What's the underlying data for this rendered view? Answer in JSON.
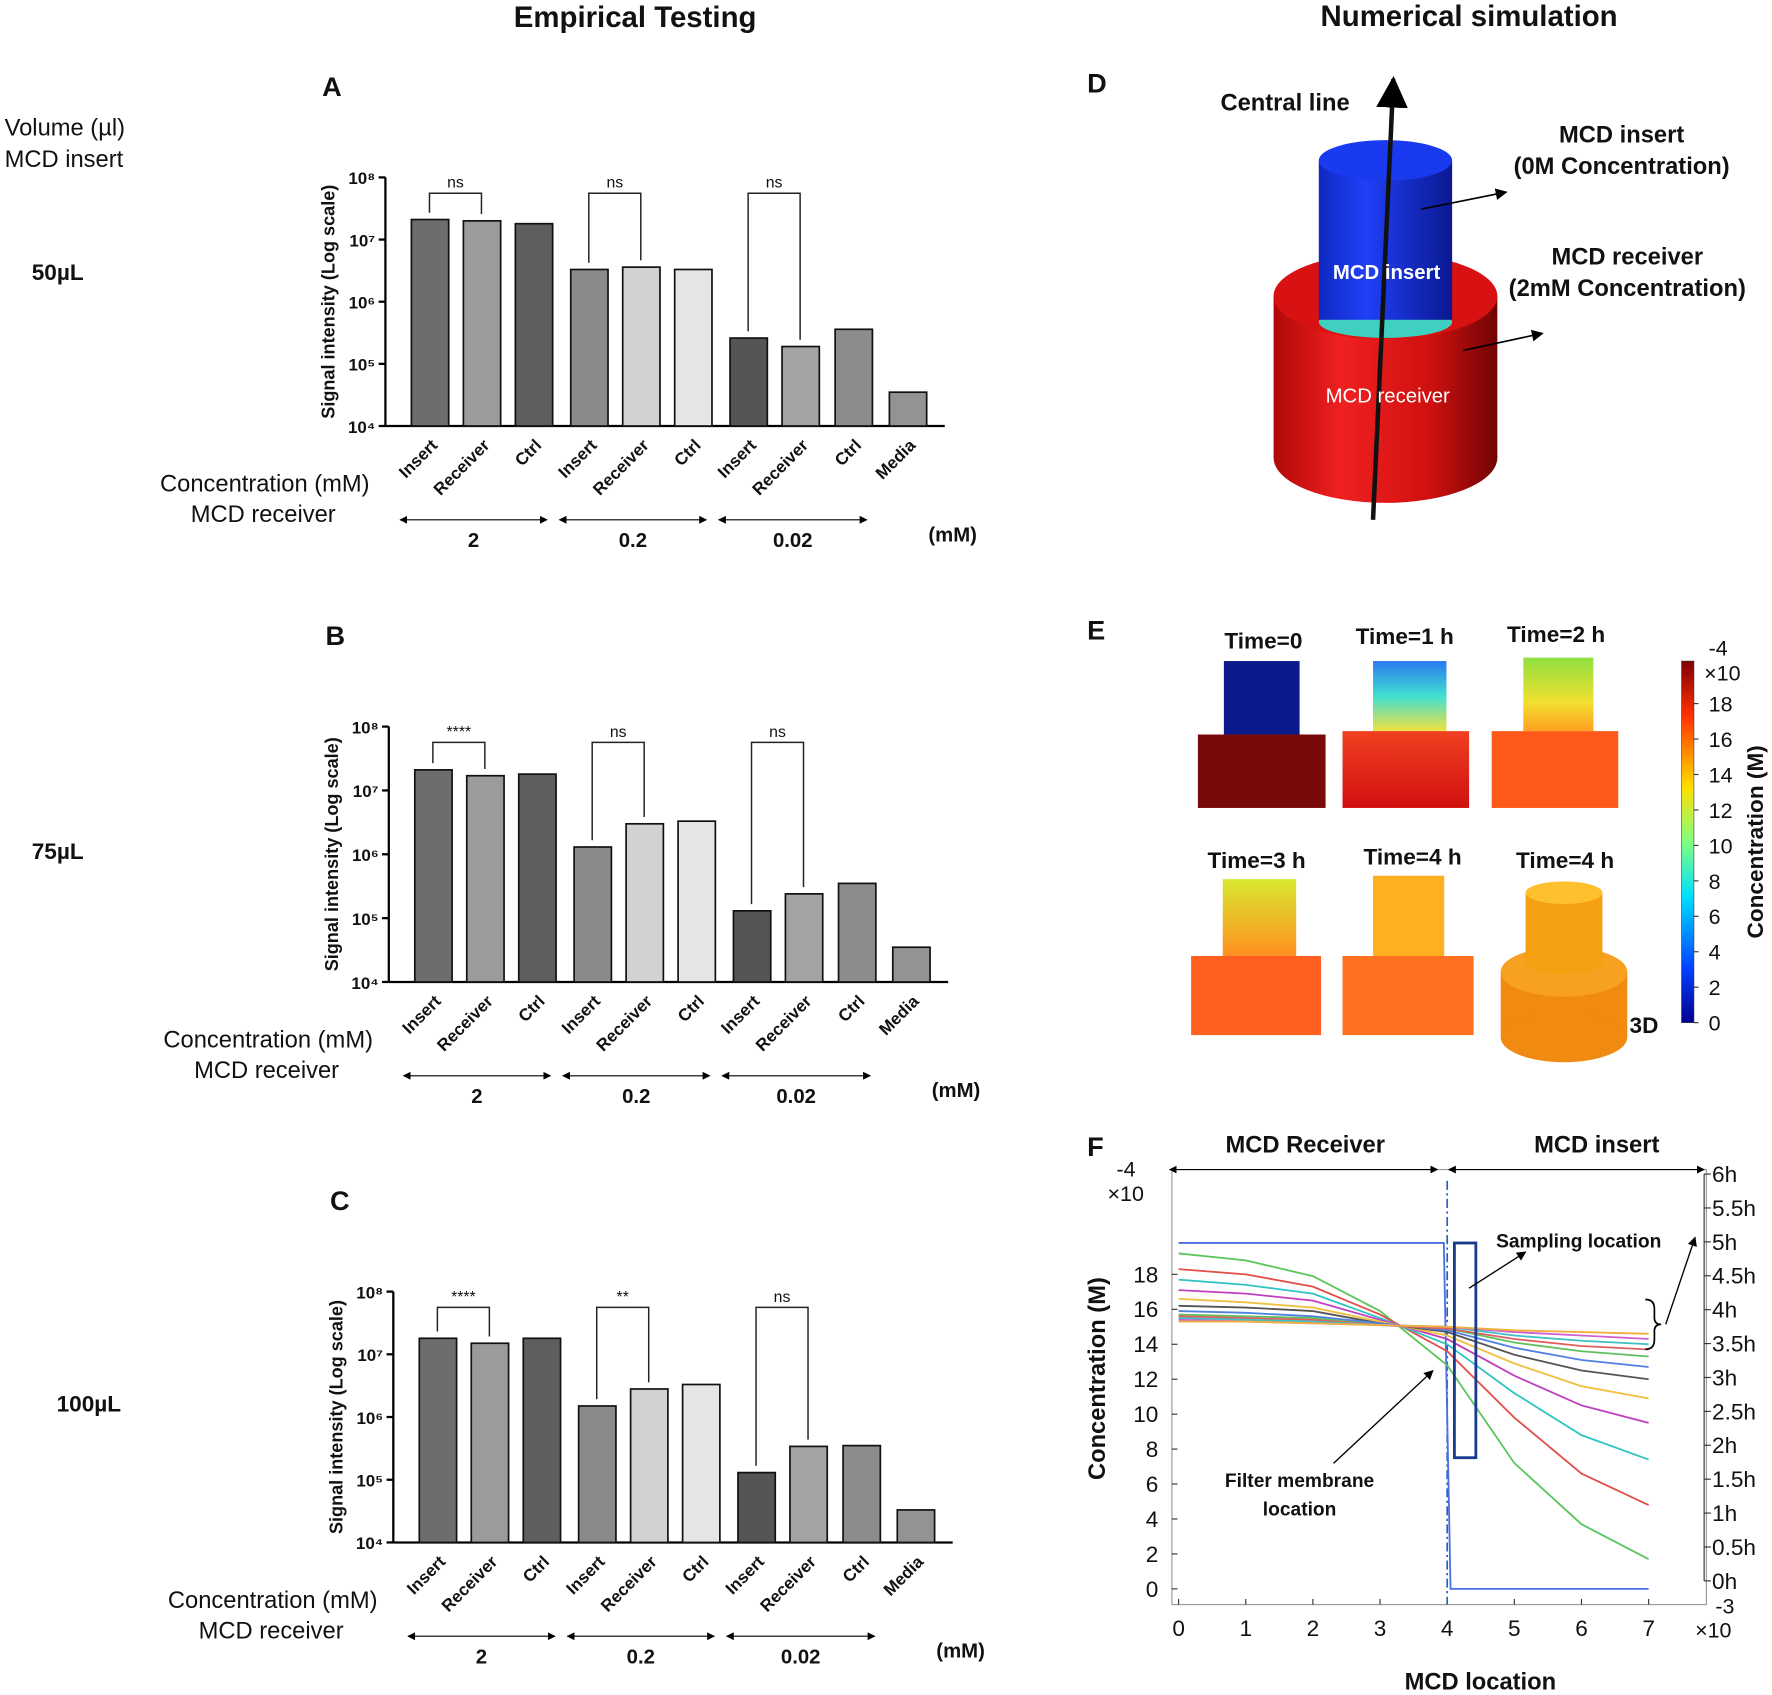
{
  "headers": [
    "Empirical Testing",
    "Numerical simulation"
  ],
  "side_labels": {
    "volume": [
      "Volume (µl)",
      "MCD insert"
    ],
    "rows": [
      "50µL",
      "75µL",
      "100µL"
    ]
  },
  "panel_d": {
    "title": "D",
    "axis": "Central line",
    "insert_callout": [
      "MCD insert",
      "(0M Concentration)"
    ],
    "receiver_callout": [
      "MCD receiver",
      "(2mM Concentration)"
    ],
    "insert_label": "MCD insert",
    "receiver_label": "MCD receiver"
  },
  "panel_e": {
    "title": "E",
    "times": [
      "Time=0",
      "Time=1 h",
      "Time=2 h",
      "Time=3 h",
      "Time=4 h",
      "Time=4 h"
    ],
    "view_3d": "3D",
    "colorbar": {
      "label": "Concentration (M)",
      "exponent": [
        "×10",
        "-4"
      ],
      "ylim": [
        0,
        20.4
      ],
      "ticks": [
        0,
        2,
        4,
        6,
        8,
        10,
        12,
        14,
        16,
        18
      ]
    }
  },
  "chart_data": [
    {
      "type": "bar",
      "title": "A",
      "ylabel": "Signal intensity (Log scale)",
      "xlabel": [
        "Concentration (mM)",
        "MCD receiver"
      ],
      "categories": [
        "Insert",
        "Receiver",
        "Ctrl",
        "Insert",
        "Receiver",
        "Ctrl",
        "Insert",
        "Receiver",
        "Ctrl",
        "Media"
      ],
      "values": [
        21000000,
        20000000,
        18000000,
        3300000,
        3600000,
        3300000,
        260000,
        190000,
        360000,
        35000
      ],
      "colors": [
        "#6d6d6d",
        "#9b9b9b",
        "#5e5e5e",
        "#8a8a8a",
        "#d2d2d2",
        "#e6e6e6",
        "#555555",
        "#a3a3a3",
        "#8c8c8c",
        "#939393"
      ],
      "log_scale": true,
      "ylim": [
        10000,
        100000000
      ],
      "yticks": [
        {
          "value": 10000,
          "label": "10⁴"
        },
        {
          "value": 100000,
          "label": "10⁵"
        },
        {
          "value": 1000000,
          "label": "10⁶"
        },
        {
          "value": 10000000,
          "label": "10⁷"
        },
        {
          "value": 100000000,
          "label": "10⁸"
        }
      ],
      "significance": [
        "ns",
        "ns",
        "ns"
      ],
      "groups": [
        "2",
        "0.2",
        "0.02"
      ],
      "group_unit": "(mM)"
    },
    {
      "type": "bar",
      "title": "B",
      "ylabel": "Signal intensity (Log scale)",
      "xlabel": [
        "Concentration (mM)",
        "MCD receiver"
      ],
      "categories": [
        "Insert",
        "Receiver",
        "Ctrl",
        "Insert",
        "Receiver",
        "Ctrl",
        "Insert",
        "Receiver",
        "Ctrl",
        "Media"
      ],
      "values": [
        21000000,
        17000000,
        18000000,
        1300000,
        3000000,
        3300000,
        130000,
        240000,
        350000,
        35000
      ],
      "colors": [
        "#6d6d6d",
        "#9b9b9b",
        "#5e5e5e",
        "#8a8a8a",
        "#d2d2d2",
        "#e6e6e6",
        "#555555",
        "#a3a3a3",
        "#8c8c8c",
        "#939393"
      ],
      "log_scale": true,
      "ylim": [
        10000,
        100000000
      ],
      "yticks": [
        {
          "value": 10000,
          "label": "10⁴"
        },
        {
          "value": 100000,
          "label": "10⁵"
        },
        {
          "value": 1000000,
          "label": "10⁶"
        },
        {
          "value": 10000000,
          "label": "10⁷"
        },
        {
          "value": 100000000,
          "label": "10⁸"
        }
      ],
      "significance": [
        "****",
        "ns",
        "ns"
      ],
      "groups": [
        "2",
        "0.2",
        "0.02"
      ],
      "group_unit": "(mM)"
    },
    {
      "type": "bar",
      "title": "C",
      "ylabel": "Signal intensity (Log scale)",
      "xlabel": [
        "Concentration (mM)",
        "MCD receiver"
      ],
      "categories": [
        "Insert",
        "Receiver",
        "Ctrl",
        "Insert",
        "Receiver",
        "Ctrl",
        "Insert",
        "Receiver",
        "Ctrl",
        "Media"
      ],
      "values": [
        18000000,
        15000000,
        18000000,
        1500000,
        2800000,
        3300000,
        130000,
        340000,
        350000,
        33000
      ],
      "colors": [
        "#6d6d6d",
        "#9b9b9b",
        "#5e5e5e",
        "#8a8a8a",
        "#d2d2d2",
        "#e6e6e6",
        "#555555",
        "#a3a3a3",
        "#8c8c8c",
        "#939393"
      ],
      "log_scale": true,
      "ylim": [
        10000,
        100000000
      ],
      "yticks": [
        {
          "value": 10000,
          "label": "10⁴"
        },
        {
          "value": 100000,
          "label": "10⁵"
        },
        {
          "value": 1000000,
          "label": "10⁶"
        },
        {
          "value": 10000000,
          "label": "10⁷"
        },
        {
          "value": 100000000,
          "label": "10⁸"
        }
      ],
      "significance": [
        "****",
        "**",
        "ns"
      ],
      "groups": [
        "2",
        "0.2",
        "0.02"
      ],
      "group_unit": "(mM)"
    },
    {
      "type": "line",
      "title": "F",
      "ylabel": "Concentration (M)",
      "xlabel": "MCD location",
      "regions": [
        "MCD Receiver",
        "MCD insert"
      ],
      "sampling": "Sampling location",
      "membrane": [
        "Filter membrane",
        "location"
      ],
      "y_exponent": [
        "×10",
        "-4"
      ],
      "x_exponent": [
        "×10",
        "-3"
      ],
      "xlim": [
        -0.1,
        7.86
      ],
      "ylim": [
        -0.9,
        24
      ],
      "xticks": [
        0,
        1,
        2,
        3,
        4,
        5,
        6,
        7
      ],
      "yticks": [
        0,
        2,
        4,
        6,
        8,
        10,
        12,
        14,
        16,
        18
      ],
      "x": [
        0,
        1,
        2,
        3,
        4,
        5,
        6,
        7
      ],
      "series": [
        {
          "name": "0h",
          "color": "#4a6fe0",
          "x": [
            0,
            3.95,
            4.05,
            7
          ],
          "values": [
            19.8,
            19.8,
            0,
            0
          ]
        },
        {
          "name": "0.5h",
          "color": "#5cc55c",
          "values": [
            19.2,
            18.8,
            17.9,
            15.9,
            12.8,
            7.2,
            3.7,
            1.7
          ]
        },
        {
          "name": "1h",
          "color": "#e0504a",
          "values": [
            18.3,
            18.0,
            17.3,
            15.7,
            13.6,
            9.8,
            6.6,
            4.8
          ]
        },
        {
          "name": "1.5h",
          "color": "#2ec4c4",
          "values": [
            17.7,
            17.4,
            16.9,
            15.5,
            14.0,
            11.2,
            8.8,
            7.4
          ]
        },
        {
          "name": "2h",
          "color": "#c040c0",
          "values": [
            17.1,
            16.9,
            16.5,
            15.4,
            14.3,
            12.2,
            10.5,
            9.5
          ]
        },
        {
          "name": "2.5h",
          "color": "#f0c040",
          "values": [
            16.6,
            16.4,
            16.1,
            15.3,
            14.5,
            12.9,
            11.6,
            10.9
          ]
        },
        {
          "name": "3h",
          "color": "#555555",
          "values": [
            16.2,
            16.1,
            15.9,
            15.2,
            14.7,
            13.4,
            12.5,
            12.0
          ]
        },
        {
          "name": "3.5h",
          "color": "#5080e0",
          "values": [
            15.9,
            15.8,
            15.6,
            15.2,
            14.8,
            13.8,
            13.1,
            12.7
          ]
        },
        {
          "name": "4h",
          "color": "#60c060",
          "values": [
            15.7,
            15.6,
            15.5,
            15.1,
            14.9,
            14.1,
            13.6,
            13.3
          ]
        },
        {
          "name": "4.5h",
          "color": "#e06060",
          "values": [
            15.6,
            15.5,
            15.4,
            15.1,
            14.9,
            14.3,
            13.9,
            13.7
          ]
        },
        {
          "name": "5h",
          "color": "#40c0c0",
          "values": [
            15.5,
            15.4,
            15.3,
            15.1,
            15.0,
            14.5,
            14.2,
            14.0
          ]
        },
        {
          "name": "5.5h",
          "color": "#d060d0",
          "values": [
            15.4,
            15.3,
            15.2,
            15.1,
            15.0,
            14.7,
            14.5,
            14.3
          ]
        },
        {
          "name": "6h",
          "color": "#f0b040",
          "values": [
            15.3,
            15.3,
            15.2,
            15.1,
            15.0,
            14.8,
            14.7,
            14.6
          ]
        }
      ]
    }
  ]
}
